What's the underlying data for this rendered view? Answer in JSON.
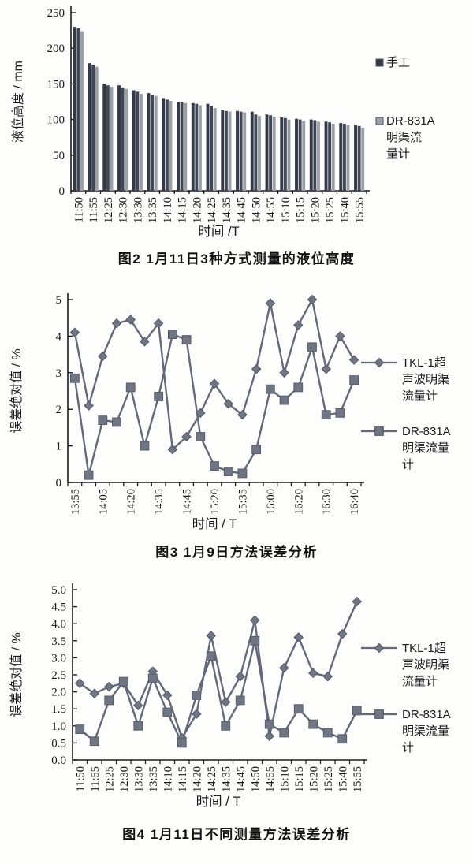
{
  "page": {
    "background": "#fdfdfb",
    "ink": "#16161a"
  },
  "chart_data": [
    {
      "type": "bar",
      "title": "图2  1月11日3种方式测量的液位高度",
      "xlabel": "时间 /T",
      "ylabel": "液位高度 / mm",
      "ylim": [
        0,
        250
      ],
      "yticks": [
        "0",
        "50",
        "100",
        "150",
        "200",
        "250"
      ],
      "grid": false,
      "legend_position": "right",
      "legend": [
        {
          "label": "手工",
          "swatch_color": "#343a47"
        },
        {
          "label": "DR-831A明渠流量计",
          "swatch_color": "#9aa0a9"
        }
      ],
      "categories": [
        "11:50",
        "11:55",
        "12:25",
        "12:30",
        "13:30",
        "13:35",
        "14:10",
        "14:15",
        "14:20",
        "14:25",
        "14:35",
        "14:45",
        "14:50",
        "14:55",
        "15:10",
        "15:15",
        "15:20",
        "15:25",
        "15:40",
        "15:55"
      ],
      "series": [
        {
          "name": "手工",
          "color": "#333948",
          "values": [
            230,
            179,
            150,
            148,
            141,
            137,
            130,
            125,
            123,
            122,
            113,
            112,
            111,
            107,
            103,
            101,
            100,
            97,
            95,
            92
          ]
        },
        {
          "name": "",
          "color": "#414754",
          "values": [
            228,
            177,
            148,
            145,
            139,
            135,
            128,
            124,
            122,
            119,
            112,
            111,
            107,
            106,
            102,
            100,
            99,
            96,
            94,
            91
          ]
        },
        {
          "name": "DR-831A明渠流量计",
          "color": "#9aa0a9",
          "values": [
            224,
            174,
            146,
            143,
            136,
            133,
            126,
            123,
            120,
            116,
            111,
            110,
            105,
            104,
            100,
            98,
            97,
            94,
            92,
            88
          ]
        }
      ]
    },
    {
      "type": "line",
      "title": "图3  1月9日方法误差分析",
      "xlabel": "时间 / T",
      "ylabel": "误差绝对值 / %",
      "ylim": [
        0,
        5
      ],
      "yticks": [
        "0",
        "1",
        "2",
        "3",
        "4",
        "5"
      ],
      "grid": false,
      "legend_position": "right",
      "legend": [
        {
          "label": "TKL-1超声波明渠流量计",
          "marker": "diamond"
        },
        {
          "label": "DR-831A明渠流量计",
          "marker": "square"
        }
      ],
      "line_color": "#63687a",
      "marker_color": "#70758   4",
      "x_labels": [
        "13:55",
        "",
        "14:05",
        "",
        "14:20",
        "",
        "14:35",
        "",
        "14:45",
        "",
        "15:20",
        "",
        "15:35",
        "",
        "16:00",
        "",
        "16:20",
        "",
        "16:30",
        "",
        "16:40"
      ],
      "series": [
        {
          "name": "TKL-1超声波明渠流量计",
          "marker": "diamond",
          "values": [
            4.1,
            2.1,
            3.45,
            4.35,
            4.45,
            3.85,
            4.35,
            0.9,
            1.25,
            1.9,
            2.7,
            2.15,
            1.85,
            3.1,
            4.9,
            3.0,
            4.3,
            5.0,
            3.1,
            4.0,
            3.35
          ]
        },
        {
          "name": "DR-831A明渠流量计",
          "marker": "square",
          "values": [
            2.85,
            0.2,
            1.7,
            1.65,
            2.6,
            1.0,
            2.35,
            4.05,
            3.9,
            1.25,
            0.45,
            0.3,
            0.25,
            0.9,
            2.55,
            2.25,
            2.6,
            3.7,
            1.85,
            1.9,
            2.8
          ]
        }
      ]
    },
    {
      "type": "line",
      "title": "图4  1月11日不同测量方法误差分析",
      "xlabel": "时间 / T",
      "ylabel": "误差绝对值 / %",
      "ylim": [
        0,
        5
      ],
      "yticks": [
        "0.0",
        "0.5",
        "1.0",
        "1.5",
        "2.0",
        "2.5",
        "3.0",
        "3.5",
        "4.0",
        "4.5",
        "5.0"
      ],
      "grid": false,
      "legend_position": "right",
      "legend": [
        {
          "label": "TKL-1超声波明渠流量计",
          "marker": "diamond"
        },
        {
          "label": "DR-831A明渠流量计",
          "marker": "square"
        }
      ],
      "line_color": "#63687a",
      "marker_color": "#707584",
      "x_labels": [
        "11:50",
        "11:55",
        "12:25",
        "12:30",
        "13:30",
        "13:35",
        "14:10",
        "14:15",
        "14:20",
        "14:25",
        "14:35",
        "14:45",
        "14:50",
        "14:55",
        "15:10",
        "15:15",
        "15:20",
        "15:25",
        "15:40",
        "15:55"
      ],
      "series": [
        {
          "name": "TKL-1超声波明渠流量计",
          "marker": "diamond",
          "values": [
            2.25,
            1.95,
            2.15,
            2.25,
            1.6,
            2.6,
            1.9,
            0.65,
            1.35,
            3.65,
            1.7,
            2.45,
            4.1,
            0.7,
            2.7,
            3.6,
            2.55,
            2.45,
            3.7,
            4.65
          ]
        },
        {
          "name": "DR-831A明渠流量计",
          "marker": "square",
          "values": [
            0.9,
            0.55,
            1.75,
            2.3,
            1.0,
            2.4,
            1.4,
            0.5,
            1.9,
            3.05,
            1.0,
            1.75,
            3.5,
            1.05,
            0.8,
            1.5,
            1.05,
            0.8,
            0.62,
            1.45
          ]
        }
      ]
    }
  ]
}
